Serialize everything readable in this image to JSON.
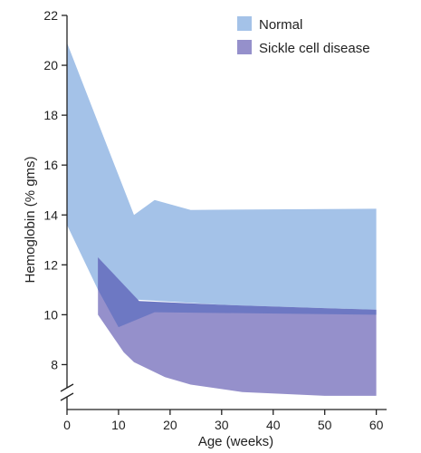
{
  "chart_data": {
    "type": "area",
    "title": "",
    "xlabel": "Age (weeks)",
    "ylabel": "Hemoglobin (% gms)",
    "xlim": [
      0,
      62
    ],
    "ylim": [
      6.2,
      22
    ],
    "axis_break": true,
    "x_ticks": [
      0,
      10,
      20,
      30,
      40,
      50,
      60
    ],
    "y_ticks": [
      8,
      10,
      12,
      14,
      16,
      18,
      20,
      22
    ],
    "legend_position": "top-right",
    "grid": false,
    "series": [
      {
        "name": "Normal",
        "color": "#a4c2e8",
        "upper": [
          [
            0,
            20.9
          ],
          [
            13,
            14.0
          ],
          [
            17,
            14.6
          ],
          [
            24,
            14.2
          ],
          [
            60,
            14.25
          ]
        ],
        "lower": [
          [
            0,
            13.6
          ],
          [
            6,
            11.0
          ],
          [
            10,
            10.6
          ],
          [
            14,
            10.6
          ],
          [
            30,
            10.4
          ],
          [
            60,
            10.2
          ]
        ]
      },
      {
        "name": "Sickle cell disease",
        "color": "#9590cb",
        "upper": [
          [
            6,
            12.3
          ],
          [
            14,
            10.5
          ],
          [
            30,
            10.35
          ],
          [
            60,
            10.2
          ]
        ],
        "lower": [
          [
            6,
            10.0
          ],
          [
            11,
            8.5
          ],
          [
            13,
            8.1
          ],
          [
            19,
            7.5
          ],
          [
            24,
            7.2
          ],
          [
            34,
            6.9
          ],
          [
            50,
            6.75
          ],
          [
            60,
            6.75
          ]
        ]
      }
    ],
    "overlap": {
      "color": "#6d78c3",
      "upper": [
        [
          6,
          12.3
        ],
        [
          14,
          10.55
        ],
        [
          30,
          10.4
        ],
        [
          60,
          10.2
        ]
      ],
      "lower": [
        [
          6,
          11.0
        ],
        [
          10,
          9.5
        ],
        [
          17,
          10.1
        ],
        [
          60,
          10.0
        ]
      ]
    }
  }
}
